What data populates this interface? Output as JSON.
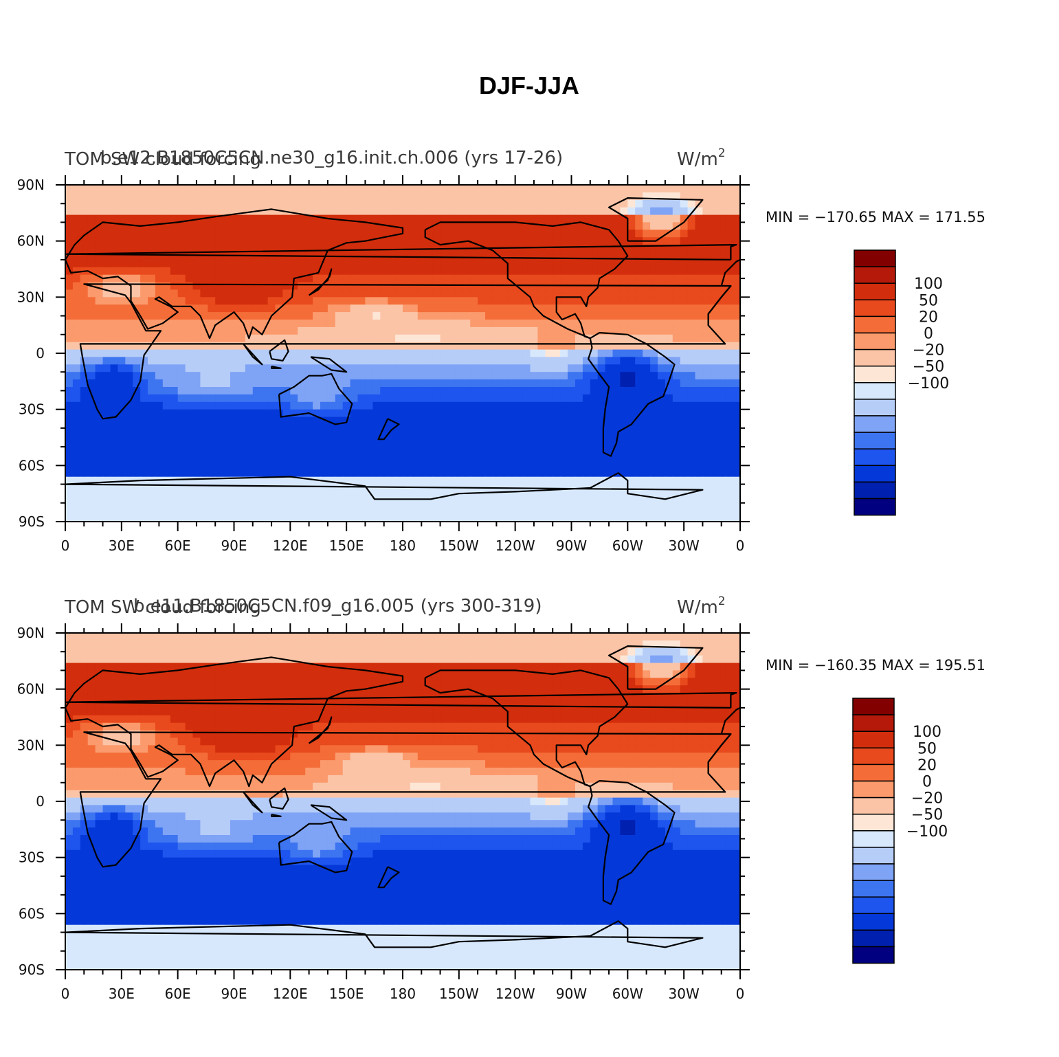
{
  "title": "DJF-JJA",
  "panels": [
    {
      "case_title": "b.e12.B1850C5CN.ne30_g16.init.ch.006 (yrs 17-26)",
      "variable_title": "TOM SW cloud forcing",
      "units_base": "W/m",
      "units_exp": "2",
      "stats": "MIN = −170.65  MAX = 171.55"
    },
    {
      "case_title": "b.e11.B1850C5CN.f09_g16.005 (yrs 300-319)",
      "variable_title": "TOM SW cloud forcing",
      "units_base": "W/m",
      "units_exp": "2",
      "stats": "MIN = −160.35  MAX = 195.51"
    }
  ],
  "x_ticks": [
    "0",
    "30E",
    "60E",
    "90E",
    "120E",
    "150E",
    "180",
    "150W",
    "120W",
    "90W",
    "60W",
    "30W",
    "0"
  ],
  "y_ticks": [
    "90N",
    "60N",
    "30N",
    "0",
    "30S",
    "60S",
    "90S"
  ],
  "colorbar": {
    "labels": [
      "100",
      "50",
      "20",
      "0",
      "−20",
      "−50",
      "−100"
    ],
    "colors": [
      "#000080",
      "#0020b0",
      "#0538d8",
      "#1e55ee",
      "#3d74f0",
      "#7fa3f5",
      "#b6cdf8",
      "#d7e8fc",
      "#fde6d6",
      "#fbc4a7",
      "#fb9a6c",
      "#f46d38",
      "#e8491d",
      "#d22d0c",
      "#b4190a",
      "#830000"
    ]
  },
  "chart_data": {
    "type": "heatmap",
    "title": "DJF-JJA",
    "xlabel": "",
    "ylabel": "",
    "x_range": [
      "0",
      "0 (360)"
    ],
    "y_range": [
      "90S",
      "90N"
    ],
    "contour_levels": [
      -140,
      -120,
      -100,
      -80,
      -65,
      -50,
      -35,
      -20,
      -10,
      0,
      10,
      20,
      35,
      50,
      65,
      80,
      100,
      120,
      140
    ],
    "series": [
      {
        "name": "b.e12.B1850C5CN.ne30_g16.init.ch.006 (yrs 17-26)",
        "min": -170.65,
        "max": 171.55,
        "pattern": "positive (red) over Northern Hemisphere mid/high latitudes, negative (blue) over Southern Hemisphere oceans and southern tropical continents"
      },
      {
        "name": "b.e11.B1850C5CN.f09_g16.005 (yrs 300-319)",
        "min": -160.35,
        "max": 195.51,
        "pattern": "positive (red) over Northern Hemisphere mid/high latitudes, negative (blue) over Southern Hemisphere oceans and southern tropical continents"
      }
    ],
    "grid": false,
    "legend_position": "right"
  }
}
